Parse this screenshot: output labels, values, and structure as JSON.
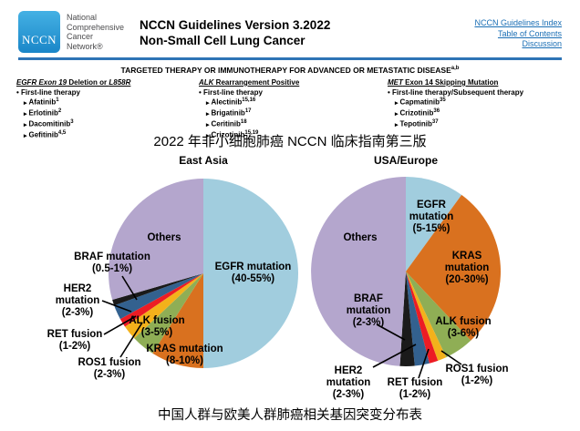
{
  "header": {
    "logo_text": "NCCN",
    "org_lines": [
      "National",
      "Comprehensive",
      "Cancer",
      "Network®"
    ],
    "title_line1": "NCCN Guidelines Version 3.2022",
    "title_line2": "Non-Small Cell Lung Cancer",
    "links": [
      "NCCN Guidelines Index",
      "Table of Contents",
      "Discussion"
    ],
    "link_color": "#1b6fb5",
    "rule_color": "#2e74b6",
    "logo_color": "#2b9fd9"
  },
  "therapy": {
    "band_title": "TARGETED THERAPY OR IMMUNOTHERAPY FOR ADVANCED OR METASTATIC DISEASE",
    "band_sup": "a,b",
    "columns": [
      {
        "em1": "EGFR Exon 19",
        "mid": " Deletion or ",
        "em2": "L858R",
        "line": "First-line therapy",
        "drugs": [
          {
            "name": "Afatinib",
            "sup": "1"
          },
          {
            "name": "Erlotinib",
            "sup": "2"
          },
          {
            "name": "Dacomitinib",
            "sup": "3"
          },
          {
            "name": "Gefitinib",
            "sup": "4,5"
          }
        ]
      },
      {
        "em1": "ALK",
        "mid": " Rearrangement Positive",
        "em2": "",
        "line": "First-line therapy",
        "drugs": [
          {
            "name": "Alectinib",
            "sup": "15,16"
          },
          {
            "name": "Brigatinib",
            "sup": "17"
          },
          {
            "name": "Ceritinib",
            "sup": "18"
          },
          {
            "name": "Crizotinib",
            "sup": "15,19"
          }
        ]
      },
      {
        "em1": "MET",
        "mid": " Exon 14 Skipping Mutation",
        "em2": "",
        "line": "First-line therapy/Subsequent therapy",
        "drugs": [
          {
            "name": "Capmatinib",
            "sup": "35"
          },
          {
            "name": "Crizotinib",
            "sup": "36"
          },
          {
            "name": "Tepotinib",
            "sup": "37"
          }
        ]
      }
    ]
  },
  "caption_top": "2022 年非小细胞肺癌 NCCN 临床指南第三版",
  "caption_bottom": "中国人群与欧美人群肺癌相关基因突变分布表",
  "chart_data": [
    {
      "type": "pie",
      "title": "East Asia",
      "start_angle": "12 o'clock, clockwise",
      "slices": [
        {
          "label": "EGFR mutation",
          "range": "(40-55%)",
          "value": 50,
          "color": "#A1CDDE",
          "lines": [
            "EGFR mutation",
            "(40-55%)"
          ]
        },
        {
          "label": "KRAS mutation",
          "range": "(8-10%)",
          "value": 9,
          "color": "#D9711F",
          "lines": [
            "KRAS mutation",
            "(8-10%)"
          ]
        },
        {
          "label": "ALK fusion",
          "range": "(3-5%)",
          "value": 4,
          "color": "#8FAE55",
          "lines": [
            "ALK fusion",
            "(3-5%)"
          ]
        },
        {
          "label": "ROS1 fusion",
          "range": "(2-3%)",
          "value": 2.5,
          "color": "#F3B11B",
          "lines": [
            "ROS1 fusion",
            "(2-3%)"
          ]
        },
        {
          "label": "RET fusion",
          "range": "(1-2%)",
          "value": 1.5,
          "color": "#EC1C24",
          "lines": [
            "RET fusion",
            "(1-2%)"
          ]
        },
        {
          "label": "HER2 mutation",
          "range": "(2-3%)",
          "value": 2.5,
          "color": "#33618F",
          "lines": [
            "HER2",
            "mutation",
            "(2-3%)"
          ]
        },
        {
          "label": "BRAF mutation",
          "range": "(0.5-1%)",
          "value": 1,
          "color": "#1A1A1A",
          "lines": [
            "BRAF mutation",
            "(0.5-1%)"
          ]
        },
        {
          "label": "Others",
          "range": "",
          "value": 29.5,
          "color": "#B4A6CD",
          "lines": [
            "Others"
          ]
        }
      ]
    },
    {
      "type": "pie",
      "title": "USA/Europe",
      "start_angle": "12 o'clock, clockwise",
      "slices": [
        {
          "label": "EGFR mutation",
          "range": "(5-15%)",
          "value": 10,
          "color": "#A1CDDE",
          "lines": [
            "EGFR",
            "mutation",
            "(5-15%)"
          ]
        },
        {
          "label": "KRAS mutation",
          "range": "(20-30%)",
          "value": 28,
          "color": "#D9711F",
          "lines": [
            "KRAS",
            "mutation",
            "(20-30%)"
          ]
        },
        {
          "label": "ALK fusion",
          "range": "(3-6%)",
          "value": 5,
          "color": "#8FAE55",
          "lines": [
            "ALK fusion",
            "(3-6%)"
          ]
        },
        {
          "label": "ROS1 fusion",
          "range": "(1-2%)",
          "value": 1.5,
          "color": "#F3B11B",
          "lines": [
            "ROS1 fusion",
            "(1-2%)"
          ]
        },
        {
          "label": "RET fusion",
          "range": "(1-2%)",
          "value": 1.5,
          "color": "#EC1C24",
          "lines": [
            "RET fusion",
            "(1-2%)"
          ]
        },
        {
          "label": "HER2 mutation",
          "range": "(2-3%)",
          "value": 2.5,
          "color": "#33618F",
          "lines": [
            "HER2",
            "mutation",
            "(2-3%)"
          ]
        },
        {
          "label": "BRAF mutation",
          "range": "(2-3%)",
          "value": 2.5,
          "color": "#1A1A1A",
          "lines": [
            "BRAF",
            "mutation",
            "(2-3%)"
          ]
        },
        {
          "label": "Others",
          "range": "",
          "value": 49,
          "color": "#B4A6CD",
          "lines": [
            "Others"
          ]
        }
      ]
    }
  ]
}
